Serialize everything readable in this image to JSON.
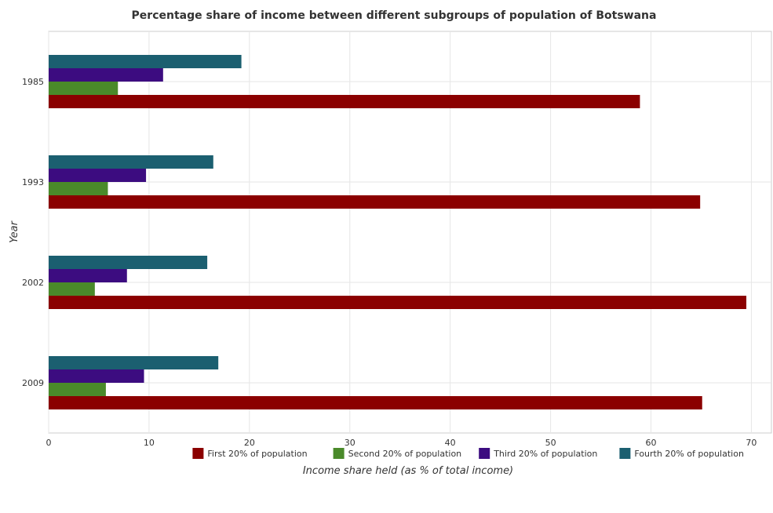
{
  "chart_data": {
    "type": "bar",
    "orientation": "horizontal",
    "title": "Percentage share of income between different subgroups of population of Botswana",
    "xlabel": "Income share held (as % of total income)",
    "ylabel": "Year",
    "categories": [
      "1985",
      "1993",
      "2002",
      "2009"
    ],
    "xlim": [
      0,
      72
    ],
    "xticks": [
      0,
      10,
      20,
      30,
      40,
      50,
      60,
      70
    ],
    "grid": true,
    "legend_position": "bottom-right",
    "series": [
      {
        "name": "First 20% of population",
        "color": "#8b0000",
        "values": [
          58.9,
          64.9,
          69.5,
          65.1
        ]
      },
      {
        "name": "Second 20% of population",
        "color": "#4a8a2a",
        "values": [
          6.9,
          5.9,
          4.6,
          5.7
        ]
      },
      {
        "name": "Third 20% of population",
        "color": "#3c0c80",
        "values": [
          11.4,
          9.7,
          7.8,
          9.5
        ]
      },
      {
        "name": "Fourth 20% of population",
        "color": "#1b5f70",
        "values": [
          19.2,
          16.4,
          15.8,
          16.9
        ]
      }
    ]
  }
}
